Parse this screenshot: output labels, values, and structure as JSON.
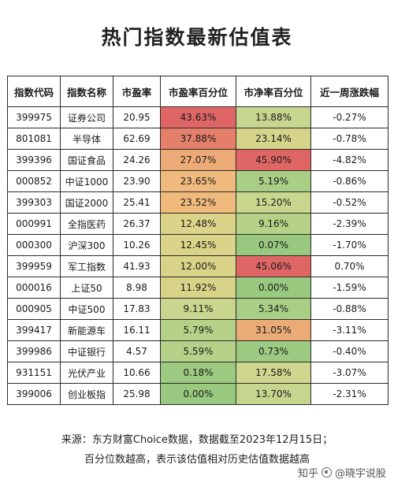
{
  "title": "热门指数最新估值表",
  "table": {
    "headers": [
      "指数代码",
      "指数名称",
      "市盈率",
      "市盈率百分位",
      "市净率百分位",
      "近一周涨跌幅"
    ],
    "rows": [
      {
        "code": "399975",
        "name": "证券公司",
        "pe": "20.95",
        "pe_pct": "43.63%",
        "pb_pct": "13.88%",
        "week": "-0.27%",
        "pe_color": "#e06666",
        "pb_color": "#c6d68f"
      },
      {
        "code": "801081",
        "name": "半导体",
        "pe": "62.69",
        "pe_pct": "37.88%",
        "pb_pct": "23.14%",
        "week": "-0.78%",
        "pe_color": "#e4806a",
        "pb_color": "#d6d48a"
      },
      {
        "code": "399396",
        "name": "国证食品",
        "pe": "24.26",
        "pe_pct": "27.07%",
        "pb_pct": "45.90%",
        "week": "-4.82%",
        "pe_color": "#ecab76",
        "pb_color": "#e06666"
      },
      {
        "code": "000852",
        "name": "中证1000",
        "pe": "23.90",
        "pe_pct": "23.65%",
        "pb_pct": "5.19%",
        "week": "-0.86%",
        "pe_color": "#efba7c",
        "pb_color": "#a8cf85"
      },
      {
        "code": "399303",
        "name": "国证2000",
        "pe": "25.41",
        "pe_pct": "23.52%",
        "pb_pct": "15.20%",
        "week": "-0.52%",
        "pe_color": "#efba7c",
        "pb_color": "#c9d68e"
      },
      {
        "code": "000991",
        "name": "全指医药",
        "pe": "26.37",
        "pe_pct": "12.48%",
        "pb_pct": "9.16%",
        "week": "-2.39%",
        "pe_color": "#dbd388",
        "pb_color": "#b5d287"
      },
      {
        "code": "000300",
        "name": "沪深300",
        "pe": "10.26",
        "pe_pct": "12.45%",
        "pb_pct": "0.07%",
        "week": "-1.70%",
        "pe_color": "#dbd388",
        "pb_color": "#99c97e"
      },
      {
        "code": "399959",
        "name": "军工指数",
        "pe": "41.93",
        "pe_pct": "12.00%",
        "pb_pct": "45.06%",
        "week": "0.70%",
        "pe_color": "#d9d388",
        "pb_color": "#e06666"
      },
      {
        "code": "000016",
        "name": "上证50",
        "pe": "8.98",
        "pe_pct": "11.92%",
        "pb_pct": "0.00%",
        "week": "-1.59%",
        "pe_color": "#d9d388",
        "pb_color": "#99c97e"
      },
      {
        "code": "000905",
        "name": "中证500",
        "pe": "17.83",
        "pe_pct": "9.11%",
        "pb_pct": "5.34%",
        "week": "-0.88%",
        "pe_color": "#c9d68e",
        "pb_color": "#a8cf85"
      },
      {
        "code": "399417",
        "name": "新能源车",
        "pe": "16.11",
        "pe_pct": "5.79%",
        "pb_pct": "31.05%",
        "week": "-3.11%",
        "pe_color": "#b6d288",
        "pb_color": "#ebab77"
      },
      {
        "code": "399986",
        "name": "中证银行",
        "pe": "4.57",
        "pe_pct": "5.59%",
        "pb_pct": "0.73%",
        "week": "-0.40%",
        "pe_color": "#b6d288",
        "pb_color": "#9bca80"
      },
      {
        "code": "931151",
        "name": "光伏产业",
        "pe": "10.66",
        "pe_pct": "0.18%",
        "pb_pct": "17.58%",
        "week": "-3.07%",
        "pe_color": "#9bca80",
        "pb_color": "#cfd78e"
      },
      {
        "code": "399006",
        "name": "创业板指",
        "pe": "25.98",
        "pe_pct": "0.00%",
        "pb_pct": "13.70%",
        "week": "-2.31%",
        "pe_color": "#99c97e",
        "pb_color": "#c6d68f"
      }
    ]
  },
  "footer": {
    "source": "来源：东方财富Choice数据，数据截至2023年12月15日；",
    "note": "百分位数越高，表示该估值相对历史估值数据越高"
  },
  "watermark": {
    "prefix": "知乎",
    "author": "@晓宇说股"
  }
}
